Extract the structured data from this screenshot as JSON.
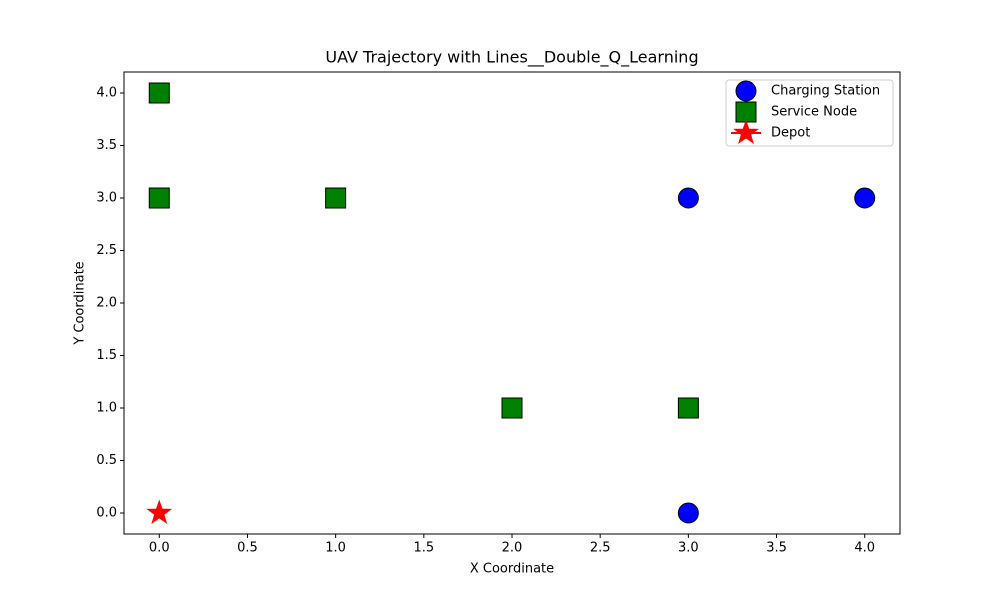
{
  "chart_data": {
    "type": "scatter",
    "title": "UAV Trajectory with Lines__Double_Q_Learning",
    "x_label": "X Coordinate",
    "y_label": "Y Coordinate",
    "xlim": [
      -0.2,
      4.2
    ],
    "ylim": [
      -0.2,
      4.2
    ],
    "xticks": [
      {
        "value": 0,
        "label": "0.0"
      },
      {
        "value": 0.5,
        "label": "0.5"
      },
      {
        "value": 1,
        "label": "1.0"
      },
      {
        "value": 1.5,
        "label": "1.5"
      },
      {
        "value": 2,
        "label": "2.0"
      },
      {
        "value": 2.5,
        "label": "2.5"
      },
      {
        "value": 3,
        "label": "3.0"
      },
      {
        "value": 3.5,
        "label": "3.5"
      },
      {
        "value": 4,
        "label": "4.0"
      }
    ],
    "yticks": [
      {
        "value": 0,
        "label": "0.0"
      },
      {
        "value": 0.5,
        "label": "0.5"
      },
      {
        "value": 1,
        "label": "1.0"
      },
      {
        "value": 1.5,
        "label": "1.5"
      },
      {
        "value": 2,
        "label": "2.0"
      },
      {
        "value": 2.5,
        "label": "2.5"
      },
      {
        "value": 3,
        "label": "3.0"
      },
      {
        "value": 3.5,
        "label": "3.5"
      },
      {
        "value": 4,
        "label": "4.0"
      }
    ],
    "legend": "upper right",
    "series": [
      {
        "name": "Charging Station",
        "color": "#0000ff",
        "marker": "circle",
        "x": [
          3,
          4,
          3
        ],
        "values": [
          3,
          3,
          0
        ]
      },
      {
        "name": "Service Node",
        "color": "#008000",
        "marker": "square",
        "x": [
          0,
          0,
          1,
          2,
          3
        ],
        "values": [
          4,
          3,
          3,
          1,
          1
        ]
      },
      {
        "name": "Depot",
        "color": "#ff0000",
        "marker": "star",
        "x": [
          0
        ],
        "values": [
          0
        ]
      }
    ]
  }
}
